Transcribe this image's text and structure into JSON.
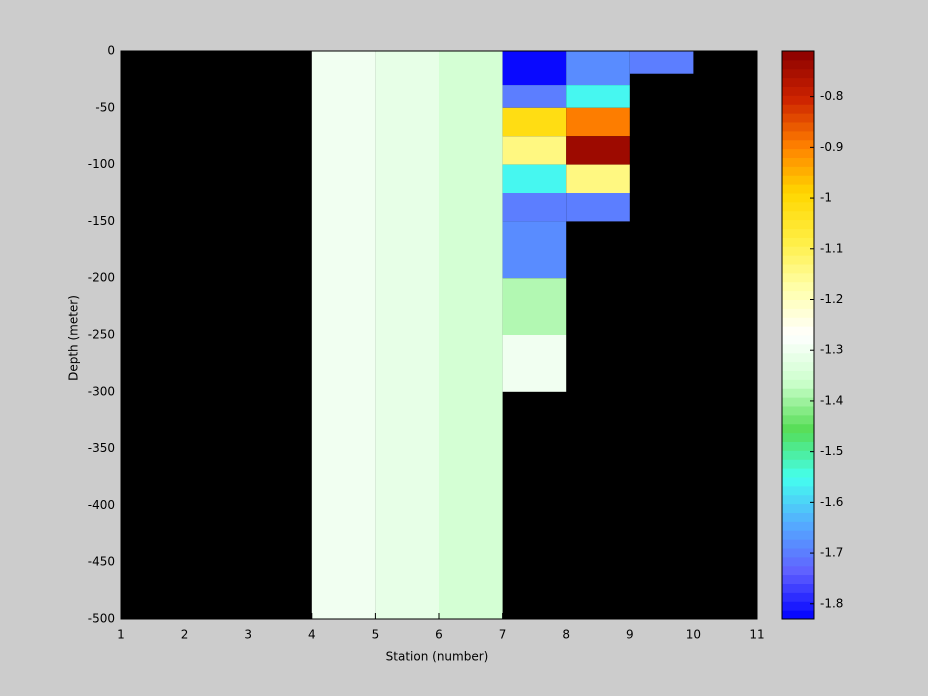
{
  "chart_data": {
    "type": "heatmap",
    "xlabel": "Station (number)",
    "ylabel": "Depth (meter)",
    "xlim": [
      1,
      11
    ],
    "xticks": [
      1,
      2,
      3,
      4,
      5,
      6,
      7,
      8,
      9,
      10,
      11
    ],
    "ylim": [
      -500,
      0
    ],
    "yticks": [
      0,
      -50,
      -100,
      -150,
      -200,
      -250,
      -300,
      -350,
      -400,
      -450,
      -500
    ],
    "background": "#000000",
    "clim": [
      -1.83,
      -0.71
    ],
    "cticks": [
      -0.8,
      -0.9,
      -1,
      -1.1,
      -1.2,
      -1.3,
      -1.4,
      -1.5,
      -1.6,
      -1.7,
      -1.8
    ],
    "colormap": [
      "#0000ff",
      "#6060ff",
      "#55aaff",
      "#44ffee",
      "#55dd55",
      "#ccffcc",
      "#ffffff",
      "#ffffaa",
      "#ffee44",
      "#ffd700",
      "#ff8000",
      "#cc2200",
      "#8b0000"
    ],
    "cells": [
      {
        "x0": 4,
        "x1": 5,
        "y0": 0,
        "y1": -500,
        "value": -1.29
      },
      {
        "x0": 5,
        "x1": 6,
        "y0": 0,
        "y1": -500,
        "value": -1.317
      },
      {
        "x0": 6,
        "x1": 7,
        "y0": 0,
        "y1": -500,
        "value": -1.345
      },
      {
        "x0": 7,
        "x1": 8,
        "y0": 0,
        "y1": -30,
        "value": -1.82
      },
      {
        "x0": 7,
        "x1": 8,
        "y0": -30,
        "y1": -50,
        "value": -1.7
      },
      {
        "x0": 7,
        "x1": 8,
        "y0": -50,
        "y1": -75,
        "value": -1.01
      },
      {
        "x0": 7,
        "x1": 8,
        "y0": -75,
        "y1": -100,
        "value": -1.13
      },
      {
        "x0": 7,
        "x1": 8,
        "y0": -100,
        "y1": -125,
        "value": -1.55
      },
      {
        "x0": 7,
        "x1": 8,
        "y0": -125,
        "y1": -150,
        "value": -1.7
      },
      {
        "x0": 7,
        "x1": 8,
        "y0": -150,
        "y1": -200,
        "value": -1.68
      },
      {
        "x0": 7,
        "x1": 8,
        "y0": -200,
        "y1": -250,
        "value": -1.38
      },
      {
        "x0": 7,
        "x1": 8,
        "y0": -250,
        "y1": -300,
        "value": -1.29
      },
      {
        "x0": 8,
        "x1": 9,
        "y0": 0,
        "y1": -30,
        "value": -1.68
      },
      {
        "x0": 8,
        "x1": 9,
        "y0": -30,
        "y1": -50,
        "value": -1.55
      },
      {
        "x0": 8,
        "x1": 9,
        "y0": -50,
        "y1": -75,
        "value": -0.9
      },
      {
        "x0": 8,
        "x1": 9,
        "y0": -75,
        "y1": -100,
        "value": -0.73
      },
      {
        "x0": 8,
        "x1": 9,
        "y0": -100,
        "y1": -125,
        "value": -1.13
      },
      {
        "x0": 8,
        "x1": 9,
        "y0": -125,
        "y1": -150,
        "value": -1.7
      },
      {
        "x0": 9,
        "x1": 10,
        "y0": 0,
        "y1": -20,
        "value": -1.7
      }
    ]
  }
}
